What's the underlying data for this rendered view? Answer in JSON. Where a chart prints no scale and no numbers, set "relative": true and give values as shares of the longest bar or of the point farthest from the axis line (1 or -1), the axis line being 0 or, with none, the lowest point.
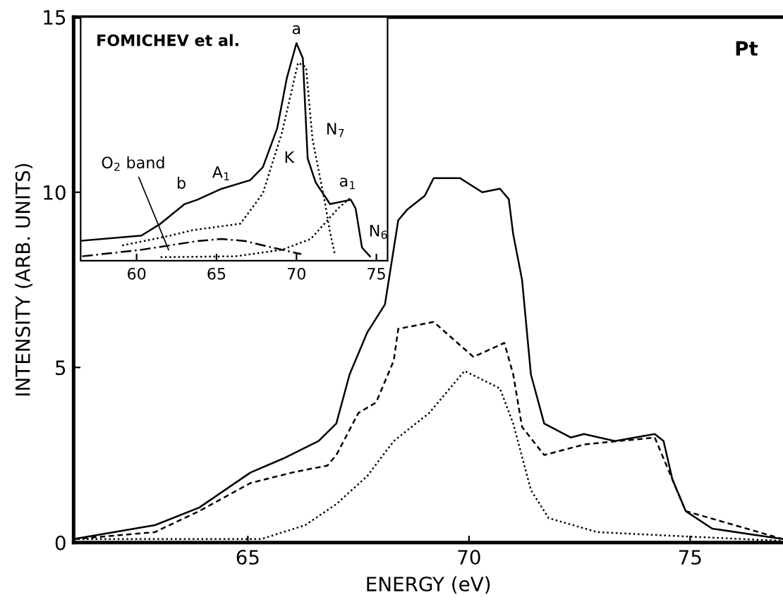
{
  "chart_data": [
    {
      "type": "line",
      "xlabel": "ENERGY (eV)",
      "ylabel": "INTENSITY (ARB. UNITS)",
      "xlim": [
        61.06,
        77.1
      ],
      "ylim": [
        0,
        15
      ],
      "xticks": [
        65,
        70,
        75
      ],
      "yticks": [
        0,
        5,
        10,
        15
      ],
      "grid": false,
      "legend": false,
      "marker": "none",
      "annotations": [
        "Pt"
      ],
      "series": [
        {
          "color": "#000000",
          "line_style": "solid",
          "x": [
            61.06,
            62.9,
            63.9,
            65.06,
            65.8,
            66.6,
            67.0,
            67.3,
            67.7,
            68.1,
            68.4,
            68.6,
            69.0,
            69.2,
            69.8,
            70.3,
            70.7,
            70.9,
            71.0,
            71.2,
            71.4,
            71.7,
            72.3,
            72.6,
            73.3,
            74.2,
            74.4,
            74.6,
            74.9,
            75.5,
            77.1
          ],
          "values": [
            0.1,
            0.5,
            1.0,
            2.0,
            2.4,
            2.9,
            3.4,
            4.8,
            6.0,
            6.8,
            9.2,
            9.5,
            9.9,
            10.4,
            10.4,
            10.0,
            10.1,
            9.8,
            8.8,
            7.5,
            4.8,
            3.4,
            3.0,
            3.1,
            2.9,
            3.1,
            2.9,
            1.8,
            0.9,
            0.4,
            0.1
          ]
        },
        {
          "color": "#000000",
          "line_style": "dashed",
          "x": [
            61.06,
            62.9,
            63.9,
            65.06,
            66.0,
            66.8,
            67.0,
            67.5,
            67.9,
            68.3,
            68.4,
            69.2,
            70.1,
            70.8,
            71.0,
            71.2,
            71.7,
            72.6,
            74.2,
            74.5,
            74.9,
            77.1
          ],
          "values": [
            0.1,
            0.3,
            0.9,
            1.7,
            2.0,
            2.2,
            2.5,
            3.7,
            4.0,
            5.2,
            6.1,
            6.3,
            5.3,
            5.7,
            4.8,
            3.3,
            2.5,
            2.8,
            3.0,
            2.1,
            0.9,
            0.1
          ]
        },
        {
          "color": "#000000",
          "line_style": "dotted",
          "x": [
            61.06,
            62.9,
            65.3,
            66.3,
            67.0,
            67.7,
            68.3,
            69.1,
            69.9,
            70.7,
            71.0,
            71.4,
            71.8,
            72.9,
            74.5,
            77.1
          ],
          "values": [
            0.1,
            0.1,
            0.1,
            0.5,
            1.1,
            1.9,
            2.9,
            3.7,
            4.9,
            4.4,
            3.4,
            1.5,
            0.7,
            0.3,
            0.2,
            0.05
          ]
        }
      ]
    },
    {
      "type": "line",
      "relative": true,
      "xlim": [
        56.5,
        75.7
      ],
      "xticks": [
        60,
        65,
        70,
        75
      ],
      "tick_labels": "x",
      "grid": false,
      "legend": false,
      "marker": "none",
      "annotations": [
        "FOMICHEV et al.",
        {
          "text": "a",
          "x": 70.0,
          "y": 1.0
        },
        {
          "text": "b",
          "x": 62.8,
          "y": 0.28
        },
        {
          "text": "A$_{1}$",
          "x": 65.3,
          "y": 0.33
        },
        {
          "text": "a$_{1}$",
          "x": 73.2,
          "y": 0.29
        },
        {
          "text": "N$_{7}$",
          "x": 71.1,
          "y": 0.6
        },
        {
          "text": "N$_{6}$",
          "x": 74.4,
          "y": 0.15
        },
        {
          "text": "K",
          "x": 70.6,
          "y": 0.47
        },
        {
          "text": "O$_{2}$ band",
          "x": 62.0,
          "y": 0.05
        }
      ],
      "series": [
        {
          "color": "#000000",
          "line_style": "solid",
          "x": [
            56.6,
            60.3,
            61.5,
            63.0,
            63.8,
            65.3,
            67.1,
            67.9,
            68.8,
            69.4,
            70.0,
            70.4,
            70.7,
            71.2,
            72.1,
            73.4,
            73.7,
            74.1,
            74.6
          ],
          "values": [
            0.092,
            0.115,
            0.17,
            0.26,
            0.28,
            0.33,
            0.37,
            0.43,
            0.61,
            0.84,
            1.0,
            0.93,
            0.47,
            0.36,
            0.26,
            0.28,
            0.24,
            0.06,
            0.02
          ]
        },
        {
          "color": "#000000",
          "line_style": "dotted",
          "x": [
            59.1,
            62.1,
            63.5,
            66.5,
            67.9,
            69.1,
            70.1,
            70.6,
            71.0,
            71.8,
            72.1,
            72.4
          ],
          "values": [
            0.07,
            0.115,
            0.14,
            0.17,
            0.31,
            0.59,
            0.91,
            0.89,
            0.56,
            0.26,
            0.13,
            0.03
          ]
        },
        {
          "color": "#000000",
          "line_style": "dashdot",
          "x": [
            56.6,
            60.3,
            63.8,
            65.3,
            66.8,
            68.5,
            70.3
          ],
          "values": [
            0.02,
            0.05,
            0.09,
            0.1,
            0.09,
            0.06,
            0.03
          ]
        },
        {
          "color": "#000000",
          "line_style": "dotted",
          "x": [
            61.5,
            66.2,
            69.1,
            70.9,
            72.6,
            73.4
          ],
          "values": [
            0.016,
            0.02,
            0.05,
            0.1,
            0.24,
            0.29
          ]
        }
      ]
    }
  ]
}
